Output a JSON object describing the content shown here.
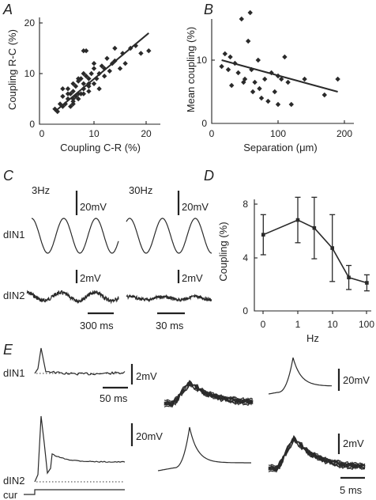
{
  "chart_data": [
    {
      "panel": "A",
      "type": "scatter",
      "xlabel": "Coupling C-R (%)",
      "ylabel": "Coupling R-C (%)",
      "xlim": [
        0,
        22
      ],
      "ylim": [
        0,
        22
      ],
      "xticks": [
        "0",
        "10",
        "20"
      ],
      "yticks": [
        "0",
        "10",
        "20"
      ],
      "x": [
        2.5,
        3,
        3.5,
        4,
        4,
        4.5,
        5,
        5,
        5.5,
        5.5,
        6,
        6,
        6,
        6.5,
        6.5,
        7,
        7,
        7,
        7.5,
        7.5,
        8,
        8,
        8,
        8,
        8.5,
        8.5,
        9,
        9,
        9,
        9.5,
        10,
        10,
        10.5,
        11,
        11,
        11.5,
        12,
        12,
        12.5,
        13,
        13.5,
        14,
        14,
        15,
        15.5,
        16,
        17,
        18,
        19,
        20.5,
        4,
        5,
        6,
        7,
        8,
        9,
        10,
        6,
        8
      ],
      "y": [
        3,
        2.5,
        4,
        3.5,
        5.5,
        4,
        5,
        7,
        3.5,
        6,
        4.5,
        6.5,
        8,
        5.5,
        7.5,
        6,
        8.5,
        5,
        6,
        9,
        7,
        8,
        14.5,
        6,
        9.5,
        14.5,
        7.5,
        9,
        6.5,
        10,
        8,
        11,
        9,
        7,
        10,
        11.5,
        9.5,
        11,
        13,
        10.5,
        12,
        12.5,
        15,
        11,
        14,
        12,
        15,
        15.5,
        14,
        14.5,
        7,
        6,
        5,
        9,
        10,
        8,
        12,
        4,
        7
      ],
      "fit": [
        [
          2.5,
          2.5
        ],
        [
          20.5,
          18
        ]
      ]
    },
    {
      "panel": "B",
      "type": "scatter",
      "xlabel": "Separation (μm)",
      "ylabel": "Mean coupling (%)",
      "xlim": [
        0,
        200
      ],
      "ylim": [
        0,
        18
      ],
      "xticks": [
        "0",
        "100",
        "200"
      ],
      "yticks": [
        "0",
        "10"
      ],
      "x": [
        15,
        20,
        25,
        28,
        30,
        35,
        40,
        45,
        48,
        50,
        55,
        58,
        60,
        62,
        65,
        70,
        72,
        75,
        80,
        85,
        90,
        95,
        100,
        100,
        105,
        110,
        115,
        120,
        140,
        170,
        190
      ],
      "y": [
        9,
        11,
        8.5,
        10.5,
        6,
        9.5,
        8,
        16.5,
        6.5,
        7,
        13,
        17.5,
        8.5,
        5,
        6.5,
        10,
        5.5,
        4,
        7,
        3.5,
        8,
        5,
        7.5,
        3,
        7,
        10.5,
        6.5,
        3,
        7,
        4.5,
        7
      ],
      "fit": [
        [
          15,
          10
        ],
        [
          190,
          5
        ]
      ]
    },
    {
      "panel": "C",
      "type": "line",
      "rows": [
        "dIN1",
        "dIN2"
      ],
      "columns": [
        "3Hz",
        "30Hz"
      ],
      "scalebars": [
        "20mV",
        "20mV",
        "2mV",
        "2mV",
        "300 ms",
        "30 ms"
      ]
    },
    {
      "panel": "D",
      "type": "line",
      "xlabel": "Hz",
      "ylabel": "Coupling (%)",
      "log_x": true,
      "xticks": [
        "0",
        "1",
        "10",
        "100"
      ],
      "yticks": [
        "0",
        "4",
        "8"
      ],
      "ylim": [
        0,
        9
      ],
      "x": [
        0.1,
        1,
        3,
        10,
        30,
        100
      ],
      "values": [
        5.7,
        6.8,
        6.2,
        4.7,
        2.5,
        2.1
      ],
      "errors": [
        1.5,
        1.7,
        2.3,
        2.5,
        0.9,
        0.6
      ]
    },
    {
      "panel": "E",
      "type": "line",
      "labels": [
        "dIN1",
        "dIN2",
        "cur"
      ],
      "scalebars": [
        "2mV",
        "50 ms",
        "20mV",
        "20mV",
        "2mV",
        "5 ms"
      ]
    }
  ]
}
